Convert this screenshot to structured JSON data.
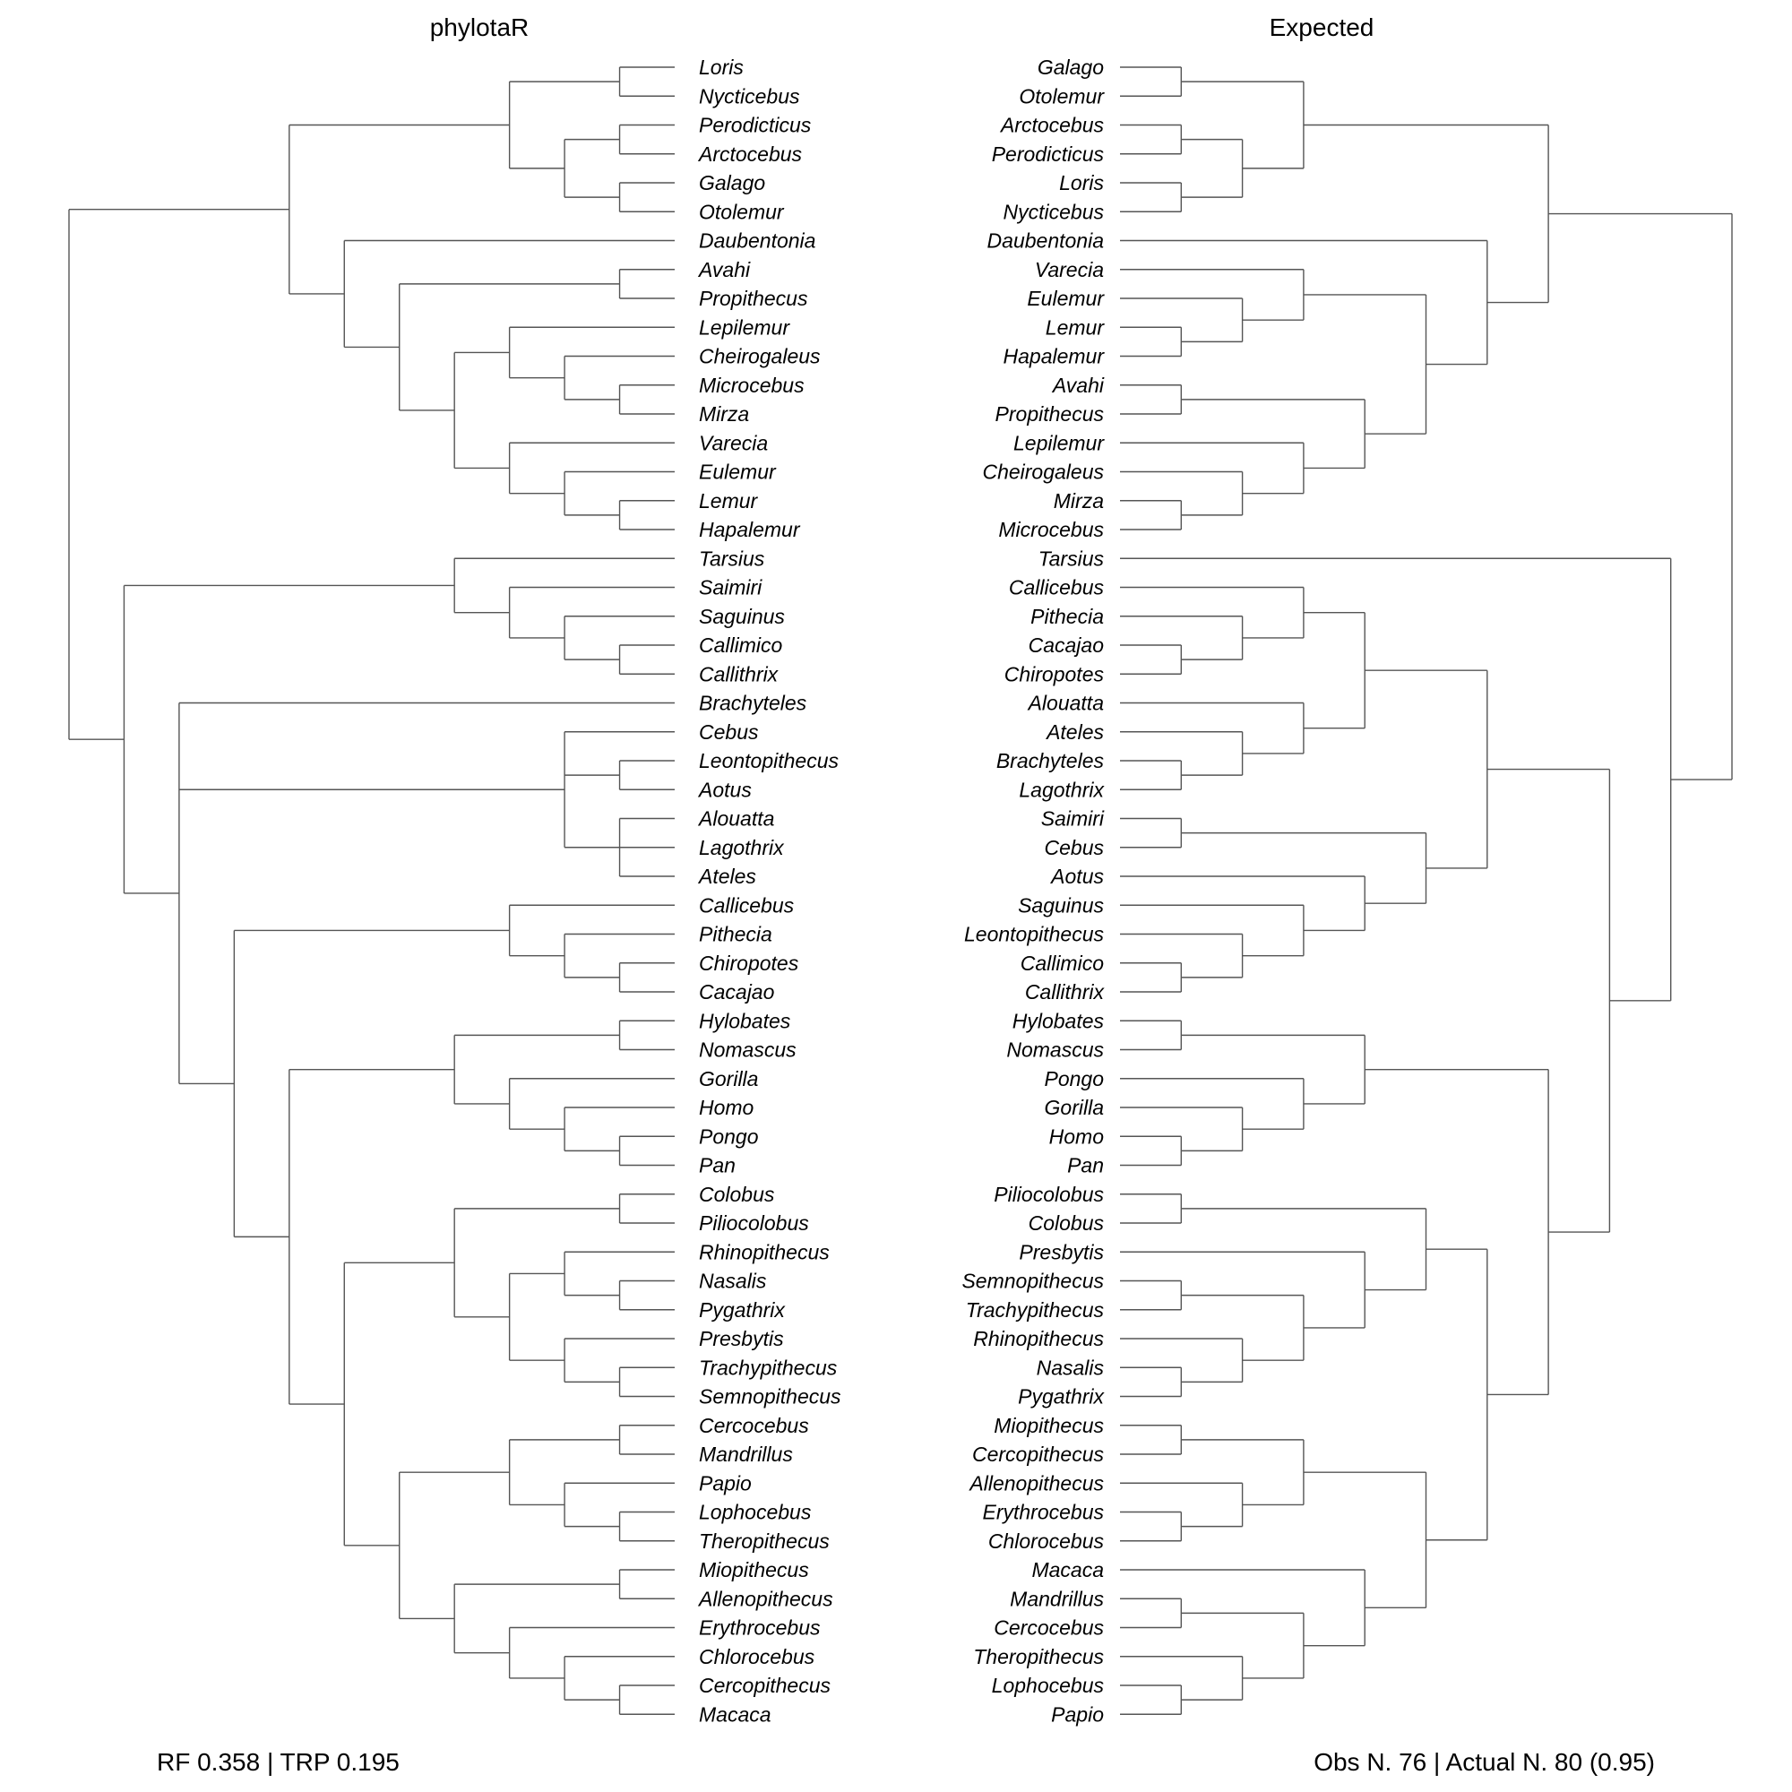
{
  "left_tree": {
    "title": "phylotaR",
    "newick": "((((Loris,Nycticebus),((Perodicticus,Arctocebus),(Galago,Otolemur))),(Daubentonia,((Avahi,Propithecus),((Lepilemur,(Cheirogaleus,(Microcebus,Mirza))),(Varecia,(Eulemur,(Lemur,Hapalemur))))))),((Tarsius,(Saimiri,(Saguinus,(Callimico,Callithrix)))),(Brachyteles,(Cebus,(Leontopithecus,Aotus),(Alouatta,Lagothrix,Ateles)),((Callicebus,(Pithecia,(Chiropotes,Cacajao))),(((Hylobates,Nomascus),(Gorilla,(Homo,(Pongo,Pan)))),(((Colobus,Piliocolobus),((Rhinopithecus,(Nasalis,Pygathrix)),(Presbytis,(Trachypithecus,Semnopithecus)))),(((Cercocebus,Mandrillus),(Papio,(Lophocebus,Theropithecus))),((Miopithecus,Allenopithecus),(Erythrocebus,(Chlorocebus,(Cercopithecus,Macaca)))))))))));"
  },
  "right_tree": {
    "title": "Expected",
    "newick": "((((Galago,Otolemur),((Arctocebus,Perodicticus),(Loris,Nycticebus))),(Daubentonia,((Varecia,(Eulemur,(Lemur,Hapalemur))),((Avahi,Propithecus),(Lepilemur,(Cheirogaleus,(Mirza,Microcebus))))))),(Tarsius,((((Callicebus,(Pithecia,(Cacajao,Chiropotes))),(Alouatta,(Ateles,(Brachyteles,Lagothrix)))),((Saimiri,Cebus),(Aotus,(Saguinus,(Leontopithecus,(Callimico,Callithrix)))))),(((Hylobates,Nomascus),(Pongo,(Gorilla,(Homo,Pan)))),(((Piliocolobus,Colobus),(Presbytis,((Semnopithecus,Trachypithecus),(Rhinopithecus,(Nasalis,Pygathrix))))),(((Miopithecus,Cercopithecus),(Allenopithecus,(Erythrocebus,Chlorocebus))),(Macaca,((Mandrillus,Cercocebus),(Theropithecus,(Lophocebus,Papio))))))))));"
  },
  "footer": {
    "left": "RF 0.358 | TRP 0.195",
    "right": "Obs N. 76 | Actual N. 80 (0.95)"
  }
}
